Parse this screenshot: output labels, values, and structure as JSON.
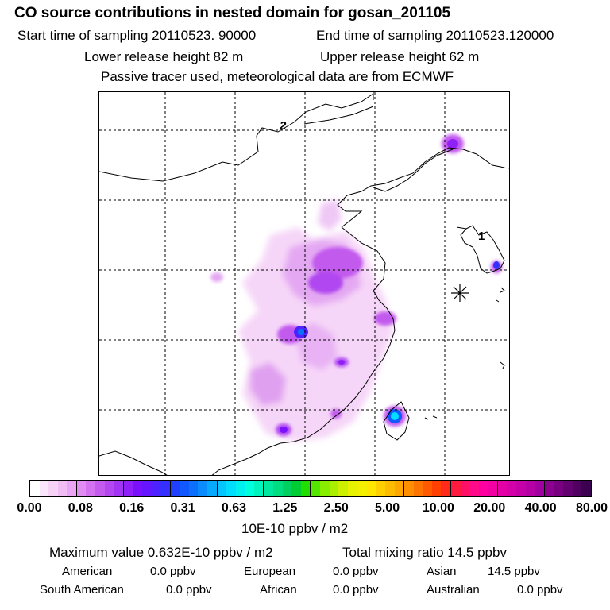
{
  "header": {
    "title": "CO  source contributions in nested domain for gosan_201105",
    "start_label": "Start time of sampling 20110523. 90000",
    "end_label": "End time of sampling 20110523.120000",
    "lower_label": "Lower release height   82 m",
    "upper_label": "Upper release height   62 m",
    "tracer_note": "Passive tracer used, meteorological data are from ECMWF"
  },
  "map": {
    "labels": {
      "contour_2": "2",
      "contour_1": "1"
    },
    "marker": "asterisk-station-marker"
  },
  "colorbar": {
    "ticks": [
      "0.00",
      "0.08",
      "0.16",
      "0.31",
      "0.63",
      "1.25",
      "2.50",
      "5.00",
      "10.00",
      "20.00",
      "40.00",
      "80.00"
    ],
    "colors": [
      "#ffffff",
      "#fae6fa",
      "#f6d2f6",
      "#f0bef5",
      "#e9a5f4",
      "#e08cf2",
      "#d471f0",
      "#c45bee",
      "#b447f0",
      "#a334f4",
      "#8f20f8",
      "#7a10fc",
      "#6616ff",
      "#4d22ff",
      "#3530ff",
      "#1f40ff",
      "#1258ff",
      "#0c70ff",
      "#0a8cff",
      "#08a8ff",
      "#06c4ff",
      "#00ddff",
      "#00f0f0",
      "#00ffdd",
      "#00f5be",
      "#00e8a0",
      "#00dc80",
      "#00d060",
      "#00cc33",
      "#22dd00",
      "#55e600",
      "#88ee00",
      "#aaee00",
      "#ccf000",
      "#e6f200",
      "#f4ee00",
      "#ffe600",
      "#ffd000",
      "#ffbb00",
      "#ffa600",
      "#ff8e00",
      "#ff7400",
      "#ff5a00",
      "#ff4000",
      "#ff2a1a",
      "#ff1a40",
      "#ff1066",
      "#ff0a88",
      "#ff00a0",
      "#f200a4",
      "#e400a6",
      "#d400a8",
      "#c400a6",
      "#b400a4",
      "#a000a0",
      "#8c0090",
      "#780080",
      "#640070",
      "#500060",
      "#3c0050"
    ],
    "unit": "10E-10 ppbv / m2"
  },
  "summary": {
    "max_value": "Maximum value  0.632E-10 ppbv / m2",
    "total_mixing": "Total mixing ratio       14.5 ppbv",
    "american": "American",
    "american_val": "0.0 ppbv",
    "european": "European",
    "european_val": "0.0 ppbv",
    "asian": "Asian",
    "asian_val": "14.5 ppbv",
    "south_american": "South American",
    "south_american_val": "0.0 ppbv",
    "african": "African",
    "african_val": "0.0 ppbv",
    "australian": "Australian",
    "australian_val": "0.0 ppbv"
  }
}
